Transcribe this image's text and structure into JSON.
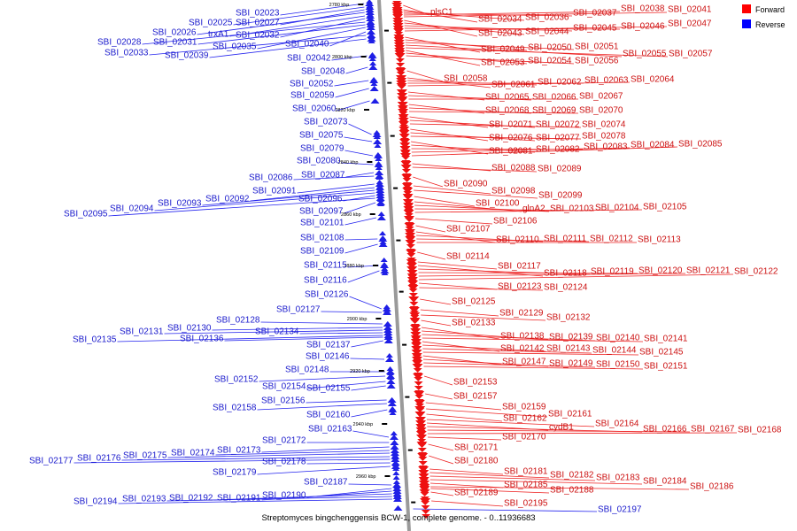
{
  "map": {
    "caption": "Streptomyces bingchenggensis BCW-1, complete genome. - 0..11936683",
    "legend": [
      {
        "label": "Forward",
        "color": "#ff0000"
      },
      {
        "label": "Reverse",
        "color": "#0000ff"
      }
    ],
    "scale_ticks": [
      "2780 kbp",
      "2800 kbp",
      "2820 kbp",
      "2840 kbp",
      "2860 kbp",
      "2880 kbp",
      "2900 kbp",
      "2920 kbp",
      "2940 kbp",
      "2960 kbp"
    ],
    "reverse_genes": [
      "SBI_02023",
      "SBI_02025",
      "SBI_02027",
      "SBI_02026",
      "trxA1",
      "SBI_02032",
      "SBI_02028",
      "SBI_02031",
      "SBI_02035",
      "SBI_02040",
      "SBI_02033",
      "SBI_02039",
      "SBI_02042",
      "SBI_02048",
      "SBI_02052",
      "SBI_02059",
      "SBI_02060",
      "SBI_02073",
      "SBI_02075",
      "SBI_02079",
      "SBI_02080",
      "SBI_02086",
      "SBI_02087",
      "SBI_02091",
      "SBI_02092",
      "SBI_02096",
      "SBI_02093",
      "SBI_02094",
      "SBI_02095",
      "SBI_02097",
      "SBI_02101",
      "SBI_02108",
      "SBI_02109",
      "SBI_02115",
      "SBI_02116",
      "SBI_02126",
      "SBI_02127",
      "SBI_02128",
      "SBI_02130",
      "SBI_02131",
      "SBI_02134",
      "SBI_02135",
      "SBI_02136",
      "SBI_02137",
      "SBI_02146",
      "SBI_02148",
      "SBI_02152",
      "SBI_02154",
      "SBI_02155",
      "SBI_02156",
      "SBI_02158",
      "SBI_02160",
      "SBI_02163",
      "SBI_02172",
      "SBI_02173",
      "SBI_02174",
      "SBI_02175",
      "SBI_02176",
      "SBI_02177",
      "SBI_02178",
      "SBI_02179",
      "SBI_02187",
      "SBI_02190",
      "SBI_02191",
      "SBI_02192",
      "SBI_02193",
      "SBI_02194",
      "SBI_02197"
    ],
    "forward_genes": [
      "plsC1",
      "SBI_02034",
      "SBI_02036",
      "SBI_02037",
      "SBI_02038",
      "SBI_02041",
      "SBI_02043",
      "SBI_02044",
      "SBI_02045",
      "SBI_02046",
      "SBI_02047",
      "SBI_02049",
      "SBI_02050",
      "SBI_02051",
      "SBI_02055",
      "SBI_02057",
      "SBI_02053",
      "SBI_02054",
      "SBI_02056",
      "SBI_02058",
      "SBI_02061",
      "SBI_02062",
      "SBI_02063",
      "SBI_02064",
      "SBI_02065",
      "SBI_02066",
      "SBI_02067",
      "SBI_02068",
      "SBI_02069",
      "SBI_02070",
      "SBI_02071",
      "SBI_02072",
      "SBI_02074",
      "SBI_02076",
      "SBI_02077",
      "SBI_02078",
      "SBI_02081",
      "SBI_02082",
      "SBI_02083",
      "SBI_02084",
      "SBI_02085",
      "SBI_02088",
      "SBI_02089",
      "SBI_02090",
      "SBI_02098",
      "SBI_02099",
      "SBI_02100",
      "glnA2",
      "SBI_02103",
      "SBI_02104",
      "SBI_02105",
      "SBI_02106",
      "SBI_02107",
      "SBI_02110",
      "SBI_02111",
      "SBI_02112",
      "SBI_02113",
      "SBI_02114",
      "SBI_02117",
      "SBI_02118",
      "SBI_02119",
      "SBI_02120",
      "SBI_02121",
      "SBI_02122",
      "SBI_02123",
      "SBI_02124",
      "SBI_02125",
      "SBI_02129",
      "SBI_02132",
      "SBI_02133",
      "SBI_02138",
      "SBI_02139",
      "SBI_02140",
      "SBI_02141",
      "SBI_02142",
      "SBI_02143",
      "SBI_02144",
      "SBI_02145",
      "SBI_02147",
      "SBI_02149",
      "SBI_02150",
      "SBI_02151",
      "SBI_02153",
      "SBI_02157",
      "SBI_02159",
      "SBI_02161",
      "SBI_02162",
      "SBI_02164",
      "cydB1",
      "SBI_02166",
      "SBI_02167",
      "SBI_02168",
      "SBI_02170",
      "SBI_02171",
      "SBI_02180",
      "SBI_02181",
      "SBI_02182",
      "SBI_02183",
      "SBI_02184",
      "SBI_02185",
      "SBI_02186",
      "SBI_02188",
      "SBI_02189",
      "SBI_02195"
    ]
  },
  "colors": {
    "forward_text": "#cc1111",
    "reverse_text": "#1a1acc",
    "forward_feature": "#ee1111",
    "reverse_feature": "#1f1fe6",
    "forward_line": "#ee2222",
    "reverse_line": "#2222ee",
    "axis": "#9a9a9a"
  }
}
